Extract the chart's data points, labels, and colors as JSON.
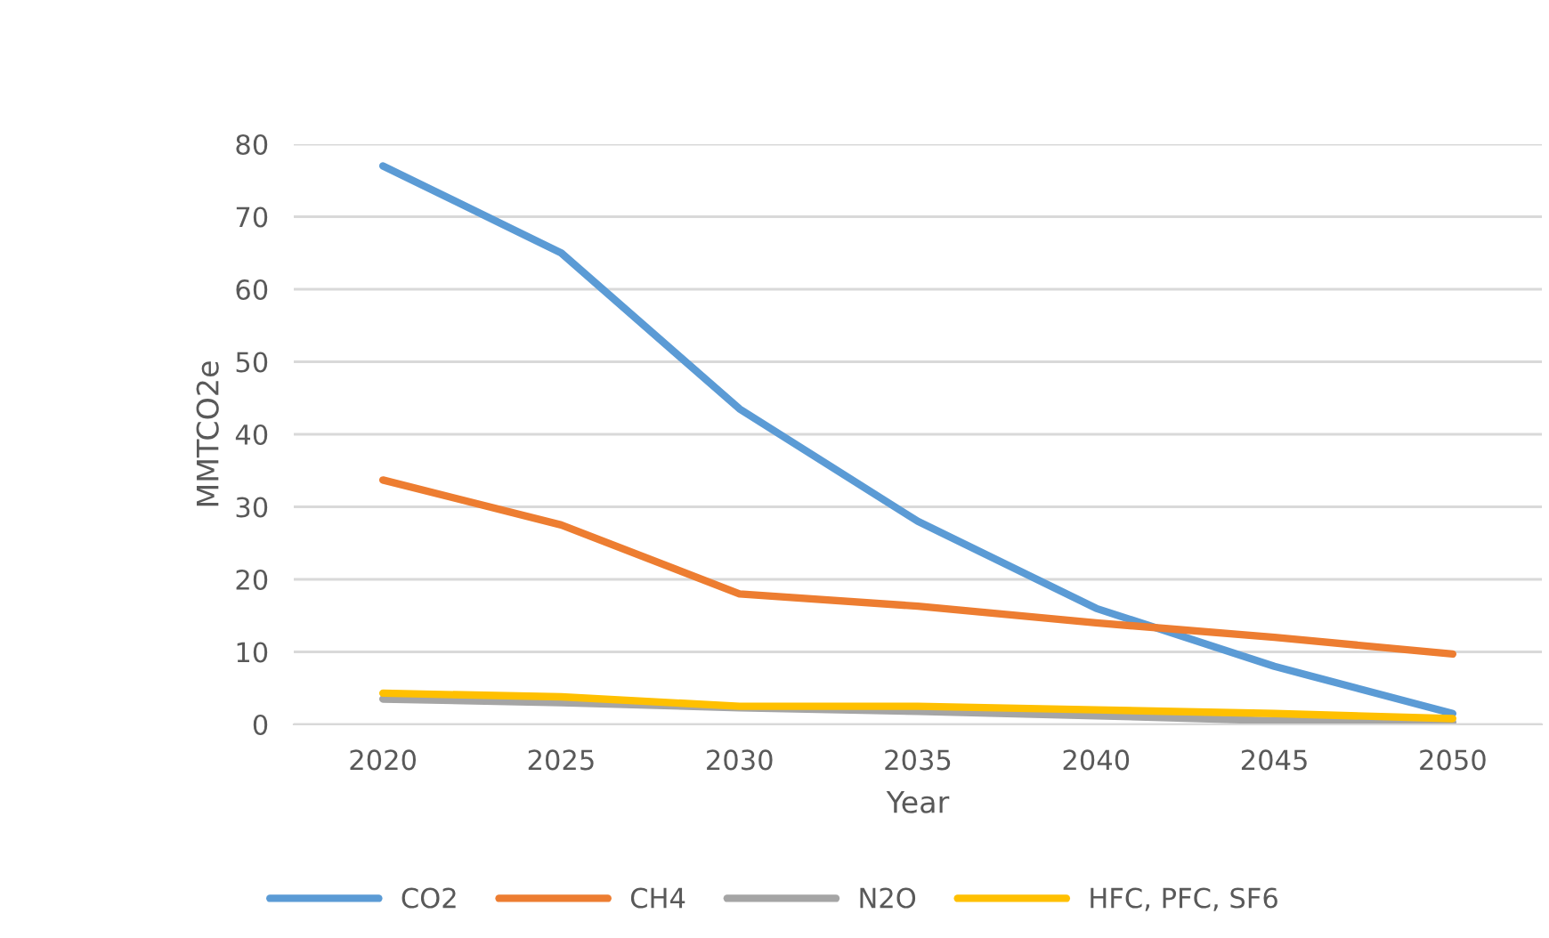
{
  "chart_data": {
    "type": "line",
    "xlabel": "Year",
    "ylabel": "MMTCO2e",
    "categories": [
      "2020",
      "2025",
      "2030",
      "2035",
      "2040",
      "2045",
      "2050"
    ],
    "series": [
      {
        "name": "CO2",
        "color": "#5b9bd5",
        "values": [
          77,
          65,
          43.5,
          28,
          16,
          8,
          1.5
        ]
      },
      {
        "name": "CH4",
        "color": "#ed7d31",
        "values": [
          33.7,
          27.5,
          18,
          16.3,
          14,
          12,
          9.7
        ]
      },
      {
        "name": "N2O",
        "color": "#a5a5a5",
        "values": [
          3.5,
          3,
          2.3,
          1.8,
          1.2,
          0.5,
          0.3
        ]
      },
      {
        "name": "HFC, PFC, SF6",
        "color": "#ffc000",
        "values": [
          4.3,
          3.8,
          2.5,
          2.5,
          2,
          1.5,
          0.8
        ]
      }
    ],
    "ylim": [
      0,
      80
    ],
    "yticks": [
      0,
      10,
      20,
      30,
      40,
      50,
      60,
      70,
      80
    ],
    "grid": "y",
    "legend": "bottom",
    "marker": "none",
    "line_style": "solid"
  }
}
